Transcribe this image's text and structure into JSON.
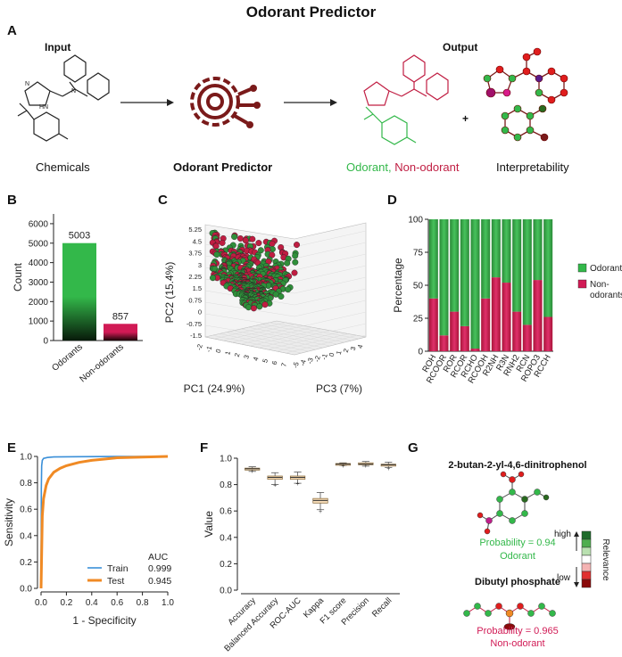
{
  "figure_title": "Odorant Predictor",
  "panels": {
    "A": "A",
    "B": "B",
    "C": "C",
    "D": "D",
    "E": "E",
    "F": "F",
    "G": "G"
  },
  "panelA": {
    "input_label": "Input",
    "output_label": "Output",
    "chemicals_label": "Chemicals",
    "predictor_label": "Odorant Predictor",
    "odorant_label": "Odorant,",
    "nonodorant_label": "Non-odorant",
    "plus": "+",
    "interpretability_label": "Interpretability",
    "colors": {
      "odorant": "#33b84a",
      "nonodorant": "#c01d42",
      "predictor": "#7a1a1a"
    }
  },
  "panelG": {
    "mol1_name": "2-butan-2-yl-4,6-dinitrophenol",
    "mol1_prob": "Probability = 0.94",
    "mol1_class": "Odorant",
    "mol2_name": "Dibutyl phosphate",
    "mol2_prob": "Probability = 0.965",
    "mol2_class": "Non-odorant",
    "scale_high": "high",
    "scale_low": "low",
    "scale_label": "Relevance"
  },
  "chart_data": [
    {
      "id": "B",
      "type": "bar",
      "categories": [
        "Odorants",
        "Non-odorants"
      ],
      "values": [
        5003,
        857
      ],
      "value_labels": [
        "5003",
        "857"
      ],
      "ylabel": "Count",
      "ylim": [
        0,
        6500
      ],
      "yticks": [
        0,
        1000,
        2000,
        3000,
        4000,
        5000,
        6000
      ],
      "ytick_labels": [
        "0",
        "1000",
        "2000",
        "3000",
        "4000",
        "5000",
        "6000"
      ],
      "colors": [
        "#33b84a",
        "#d11a55"
      ]
    },
    {
      "id": "C",
      "type": "scatter",
      "xlabel": "PC1 (24.9%)",
      "ylabel": "PC2 (15.4%)",
      "zlabel": "PC3 (7%)",
      "yticks": [
        "-1.5",
        "-0.75",
        "0",
        "0.75",
        "1.5",
        "2.25",
        "3",
        "3.75",
        "4.5",
        "5.25"
      ],
      "xticks": [
        "-2",
        "-1",
        "0",
        "1",
        "2",
        "3",
        "4",
        "5",
        "6",
        "7"
      ],
      "zticks": [
        "-5",
        "-4",
        "-3",
        "-2",
        "-1",
        "0",
        "1",
        "2",
        "3",
        "4"
      ],
      "series": [
        {
          "name": "Odorants",
          "color": "#2f8f3a"
        },
        {
          "name": "Non-odorants",
          "color": "#c01d42"
        }
      ]
    },
    {
      "id": "D",
      "type": "bar",
      "stacked": true,
      "ylabel": "Percentage",
      "ylim": [
        0,
        100
      ],
      "yticks": [
        0,
        25,
        50,
        75,
        100
      ],
      "ytick_labels": [
        "0",
        "25",
        "50",
        "75",
        "100"
      ],
      "categories": [
        "ROH",
        "RCOOR",
        "ROR",
        "RCOR",
        "RCHO",
        "RCOOH",
        "R2NH",
        "R3N",
        "RNH2",
        "RCN",
        "ROPO3",
        "RCCH"
      ],
      "series": [
        {
          "name": "Non-odorants",
          "color": "#d11a55",
          "values": [
            40,
            12,
            30,
            19,
            2,
            40,
            56,
            52,
            30,
            20,
            54,
            26
          ]
        },
        {
          "name": "Odorants",
          "color": "#33b84a",
          "values": [
            60,
            88,
            70,
            81,
            98,
            60,
            44,
            48,
            70,
            80,
            46,
            74
          ]
        }
      ],
      "legend": [
        "Odorants",
        "Non-odorants"
      ],
      "legend_position": "right"
    },
    {
      "id": "E",
      "type": "line",
      "xlabel": "1 - Specificity",
      "ylabel": "Sensitivity",
      "xlim": [
        0,
        1
      ],
      "ylim": [
        0,
        1
      ],
      "xticks": [
        "0.0",
        "0.2",
        "0.4",
        "0.6",
        "0.8",
        "1.0"
      ],
      "yticks": [
        "0.0",
        "0.2",
        "0.4",
        "0.6",
        "0.8",
        "1.0"
      ],
      "legend_title": "AUC",
      "series": [
        {
          "name": "Train",
          "auc": "0.999",
          "color": "#3a8fd8",
          "x": [
            0,
            0.002,
            0.005,
            0.01,
            0.02,
            0.05,
            0.1,
            0.3,
            0.6,
            1.0
          ],
          "y": [
            0,
            0.75,
            0.93,
            0.97,
            0.985,
            0.992,
            0.996,
            0.998,
            1.0,
            1.0
          ]
        },
        {
          "name": "Test",
          "auc": "0.945",
          "color": "#f08a24",
          "x": [
            0,
            0.01,
            0.02,
            0.04,
            0.06,
            0.1,
            0.15,
            0.2,
            0.3,
            0.4,
            0.5,
            0.6,
            0.8,
            1.0
          ],
          "y": [
            0,
            0.55,
            0.68,
            0.78,
            0.83,
            0.88,
            0.91,
            0.93,
            0.955,
            0.97,
            0.98,
            0.99,
            0.995,
            1.0
          ]
        }
      ]
    },
    {
      "id": "F",
      "type": "box",
      "ylabel": "Value",
      "ylim": [
        0,
        1
      ],
      "yticks": [
        "0.0",
        "0.2",
        "0.4",
        "0.6",
        "0.8",
        "1.0"
      ],
      "categories": [
        "Accuracy",
        "Balanced Accuracy",
        "ROC-AUC",
        "Kappa",
        "F1 score",
        "Precision",
        "Recall"
      ],
      "boxes": [
        {
          "min": 0.9,
          "q1": 0.91,
          "median": 0.92,
          "q3": 0.925,
          "max": 0.935,
          "outlier": 0.905
        },
        {
          "min": 0.8,
          "q1": 0.84,
          "median": 0.855,
          "q3": 0.865,
          "max": 0.89,
          "outlier": 0.8
        },
        {
          "min": 0.81,
          "q1": 0.84,
          "median": 0.855,
          "q3": 0.865,
          "max": 0.895,
          "outlier": 0.81
        },
        {
          "min": 0.61,
          "q1": 0.66,
          "median": 0.68,
          "q3": 0.695,
          "max": 0.74,
          "outlier": 0.6
        },
        {
          "min": 0.945,
          "q1": 0.95,
          "median": 0.955,
          "q3": 0.96,
          "max": 0.965,
          "outlier": 0.945
        },
        {
          "min": 0.94,
          "q1": 0.95,
          "median": 0.955,
          "q3": 0.965,
          "max": 0.975,
          "outlier": 0.945
        },
        {
          "min": 0.93,
          "q1": 0.94,
          "median": 0.95,
          "q3": 0.955,
          "max": 0.97,
          "outlier": 0.925
        }
      ],
      "box_color": "#f3d9b5"
    }
  ]
}
